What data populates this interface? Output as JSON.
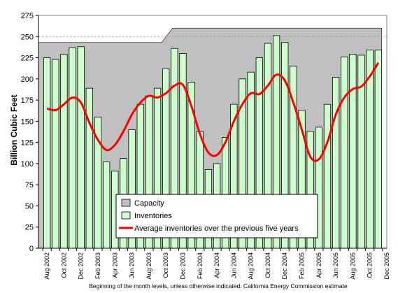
{
  "chart_data": {
    "type": "bar",
    "ylabel": "Billion Cubic Feet",
    "ylim": [
      0,
      275
    ],
    "yticks": [
      0,
      25,
      50,
      75,
      100,
      125,
      150,
      175,
      200,
      225,
      250,
      275
    ],
    "xtick_labels": [
      "Aug 2002",
      "Oct 2002",
      "Dec 2002",
      "Feb 2003",
      "Apr 2003",
      "Jun 2003",
      "Aug 2003",
      "Oct 2003",
      "Dec 2003",
      "Feb 2004",
      "Apr 2004",
      "Jun 2004",
      "Aug 2004",
      "Oct 2004",
      "Dec 2004",
      "Feb 2005",
      "Apr 2005",
      "Jun 2005",
      "Aug 2005",
      "Oct 2005",
      "Dec 2005"
    ],
    "footnote": "Beginning of the month levels, unless otherwise indicated. California Energy Commission estimate",
    "grid": false,
    "legend_position": "bottom-center",
    "colors": {
      "plot_background": "#ffffff",
      "capacity": "#c0c0c0",
      "inventories": "#ccffcc",
      "inventories_border": "#000000",
      "average_line": "#ff0000"
    },
    "series": [
      {
        "name": "Capacity",
        "kind": "area",
        "values": [
          243,
          243,
          243,
          243,
          243,
          243,
          243,
          243,
          243,
          243,
          243,
          243,
          243,
          243,
          243,
          243,
          243,
          243,
          243,
          243,
          243,
          243,
          243,
          243,
          243,
          243,
          243,
          243,
          243,
          243,
          243,
          243,
          243,
          243,
          243,
          243,
          243,
          243,
          243,
          243
        ]
      },
      {
        "name": "Inventories",
        "kind": "bar",
        "values": [
          225,
          223,
          229,
          237,
          238,
          189,
          155,
          102,
          91,
          106,
          140,
          170,
          180,
          189,
          212,
          236,
          230,
          196,
          138,
          93,
          100,
          131,
          170,
          200,
          208,
          225,
          242,
          251,
          243,
          215,
          163,
          138,
          143,
          170,
          202,
          226,
          229,
          228,
          234,
          234
        ]
      },
      {
        "name": "Average inventories over the previous five years",
        "kind": "line",
        "values": [
          165,
          163,
          170,
          178,
          172,
          148,
          128,
          116,
          122,
          138,
          158,
          172,
          180,
          178,
          183,
          192,
          193,
          168,
          135,
          113,
          110,
          125,
          150,
          170,
          183,
          182,
          192,
          205,
          198,
          172,
          140,
          108,
          105,
          125,
          158,
          178,
          188,
          191,
          203,
          219
        ]
      }
    ]
  }
}
